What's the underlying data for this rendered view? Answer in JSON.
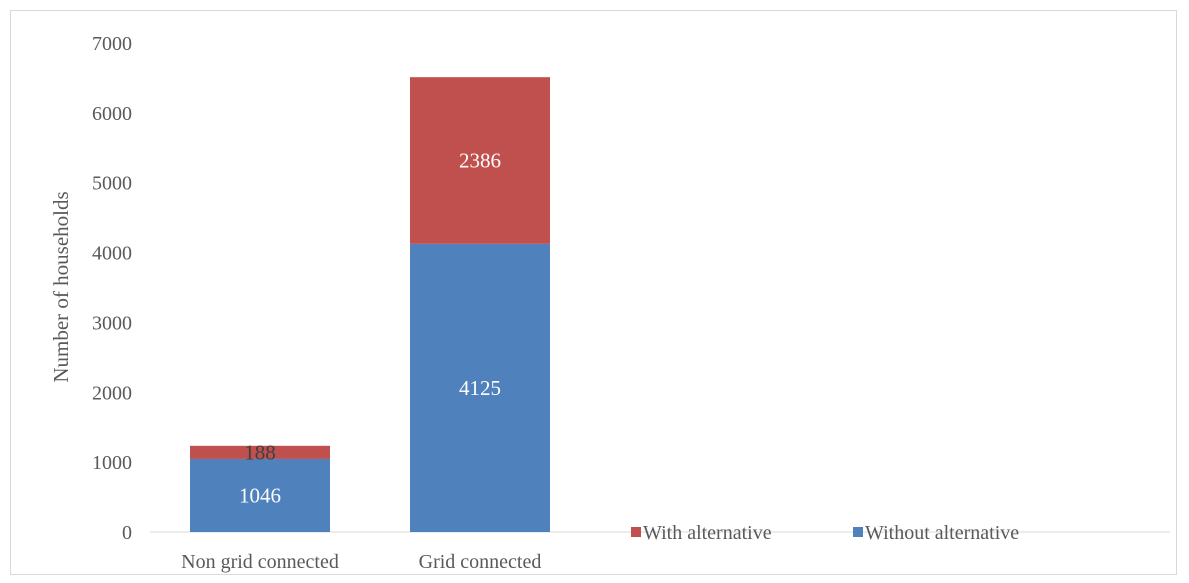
{
  "chart_data": {
    "type": "bar",
    "stacked": true,
    "categories": [
      "Non grid connected",
      "Grid connected"
    ],
    "series": [
      {
        "name": "Without alternative",
        "values": [
          1046,
          4125
        ],
        "color": "#4f81bd",
        "label_color": "#ffffff"
      },
      {
        "name": "With alternative",
        "values": [
          188,
          2386
        ],
        "color": "#c0504d",
        "label_color": "#ffffff"
      }
    ],
    "title": "",
    "xlabel": "",
    "ylabel": "Number of households",
    "ylim": [
      0,
      7000
    ],
    "yticks": [
      0,
      1000,
      2000,
      3000,
      4000,
      5000,
      6000,
      7000
    ],
    "grid": false,
    "legend_position": "bottom-right",
    "legend_order": [
      "With alternative",
      "Without alternative"
    ],
    "data_label_overrides": {
      "1.0": "#404040"
    }
  }
}
